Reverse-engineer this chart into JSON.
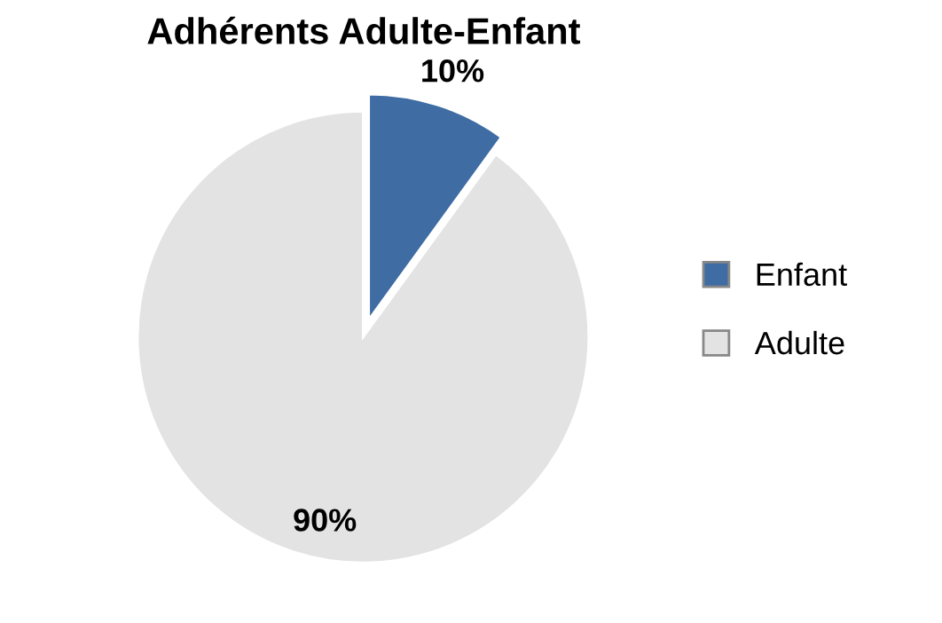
{
  "chart_data": {
    "type": "pie",
    "title": "Adhérents Adulte-Enfant",
    "categories": [
      "Enfant",
      "Adulte"
    ],
    "values": [
      10,
      90
    ],
    "colors": [
      "#3e6ca3",
      "#e3e3e3"
    ],
    "value_labels": [
      "10%",
      "90%"
    ],
    "legend": "right"
  }
}
